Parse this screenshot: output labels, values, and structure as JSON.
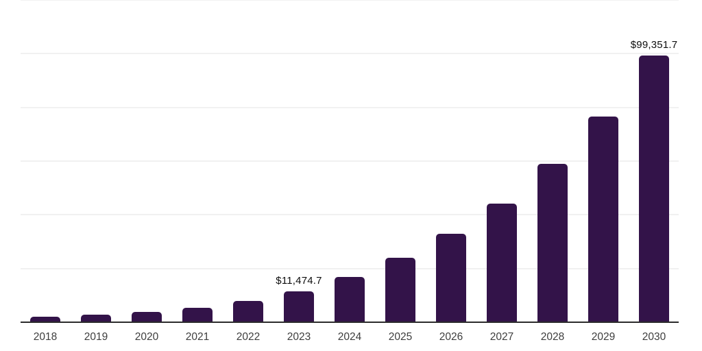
{
  "chart_data": {
    "type": "bar",
    "title": "",
    "xlabel": "",
    "ylabel": "",
    "categories": [
      "2018",
      "2019",
      "2020",
      "2021",
      "2022",
      "2023",
      "2024",
      "2025",
      "2026",
      "2027",
      "2028",
      "2029",
      "2030"
    ],
    "values": [
      2100,
      2900,
      3900,
      5300,
      7850,
      11474.7,
      16900,
      24100,
      32900,
      44200,
      59000,
      76700,
      99351.7
    ],
    "bar_labels": [
      "",
      "",
      "",
      "",
      "",
      "$11,474.7",
      "",
      "",
      "",
      "",
      "",
      "",
      "$99,351.7"
    ],
    "ylim": [
      0,
      120000
    ],
    "gridline_step": 20000,
    "grid": "horizontal",
    "legend": "none",
    "y_tick_labels_visible": false,
    "colors": {
      "bar": "#331349",
      "axis": "#2b2b2b",
      "gridline": "#f1f1f1",
      "tick_label": "#3d3d3d",
      "data_label": "#0d0d0d",
      "background": "#ffffff"
    }
  }
}
